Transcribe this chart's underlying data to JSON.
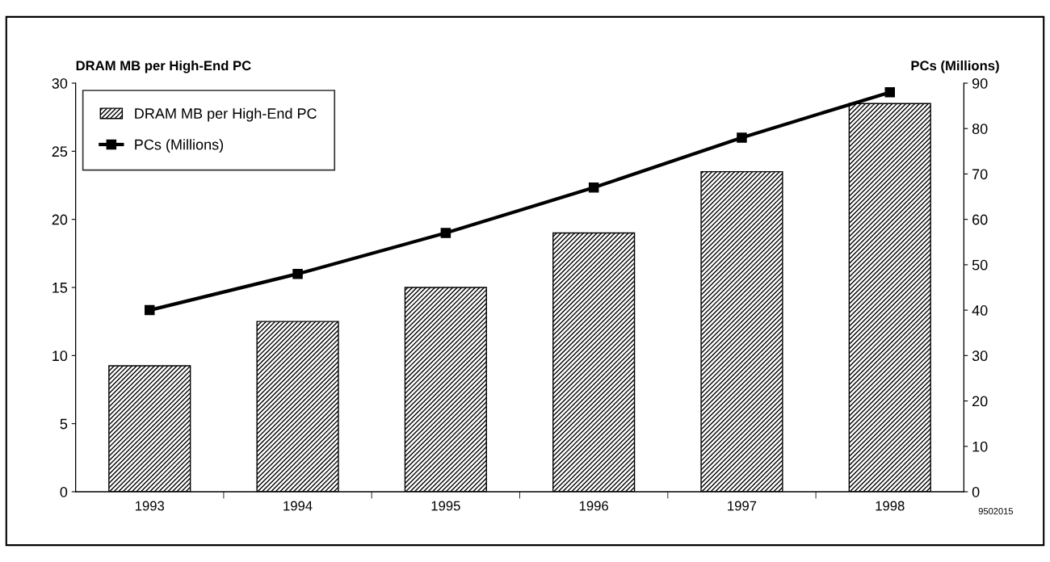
{
  "chart_data": {
    "type": "bar",
    "ylabel": "DRAM MB per High-End PC",
    "y2label": "PCs (Millions)",
    "categories": [
      "1993",
      "1994",
      "1995",
      "1996",
      "1997",
      "1998"
    ],
    "series": [
      {
        "name": "DRAM MB per High-End PC",
        "color": "#000000",
        "values": [
          9.25,
          12.5,
          15.0,
          19.0,
          23.5,
          28.5
        ]
      },
      {
        "name": "PCs (Millions)",
        "type": "line",
        "axis": "y2",
        "color": "#000000",
        "marker": "square",
        "line_style": "solid",
        "values": [
          40,
          48,
          57,
          67,
          78,
          88
        ]
      }
    ],
    "ylim": [
      0,
      30
    ],
    "yticks": [
      0,
      5,
      10,
      15,
      20,
      25,
      30
    ],
    "y2lim": [
      0,
      90
    ],
    "y2ticks": [
      0,
      10,
      20,
      30,
      40,
      50,
      60,
      70,
      80,
      90
    ],
    "grid": false,
    "legend": "top left",
    "annotations": [
      "9502015"
    ]
  }
}
